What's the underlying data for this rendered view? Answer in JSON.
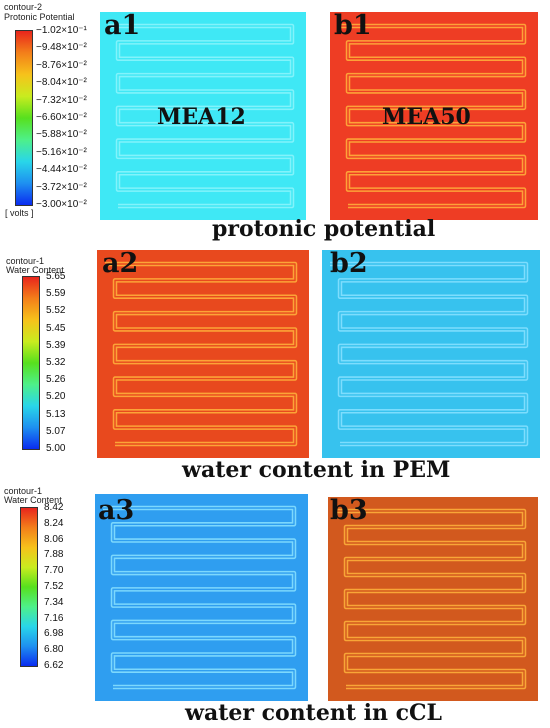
{
  "colors": {
    "a1": "#3fe8f5",
    "b1": "#ee3d24",
    "a2": "#e8491e",
    "b2": "#37c2ee",
    "a3": "#2f9ef0",
    "b3": "#d2591e",
    "stripe_light": "#ffb43c",
    "stripe_blue": "#8ae2ff",
    "stripe_cyan": "#8ef4fb",
    "colormap": [
      "#0a2cf0",
      "#1e90f0",
      "#29d6e9",
      "#4ef089",
      "#57e01e",
      "#c9ec1f",
      "#f6c21b",
      "#f37f1a",
      "#e8251c"
    ]
  },
  "legends": [
    {
      "id": "contour2",
      "title": "contour-2",
      "subtitle": "Protonic Potential",
      "unit": "[ volts ]",
      "ticks": [
        "−1.02×10⁻¹",
        "−9.48×10⁻²",
        "−8.76×10⁻²",
        "−8.04×10⁻²",
        "−7.32×10⁻²",
        "−6.60×10⁻²",
        "−5.88×10⁻²",
        "−5.16×10⁻²",
        "−4.44×10⁻²",
        "−3.72×10⁻²",
        "−3.00×10⁻²"
      ]
    },
    {
      "id": "contour1a",
      "title": "contour-1",
      "subtitle": "Water Content",
      "ticks": [
        "5.65",
        "5.59",
        "5.52",
        "5.45",
        "5.39",
        "5.32",
        "5.26",
        "5.20",
        "5.13",
        "5.07",
        "5.00"
      ]
    },
    {
      "id": "contour1b",
      "title": "contour-1",
      "subtitle": "Water Content",
      "ticks": [
        "8.42",
        "8.24",
        "8.06",
        "7.88",
        "7.70",
        "7.52",
        "7.34",
        "7.16",
        "6.98",
        "6.80",
        "6.62"
      ]
    }
  ],
  "panels": {
    "a1": {
      "label": "a1",
      "mea": "MEA12"
    },
    "b1": {
      "label": "b1",
      "mea": "MEA50"
    },
    "a2": {
      "label": "a2"
    },
    "b2": {
      "label": "b2"
    },
    "a3": {
      "label": "a3"
    },
    "b3": {
      "label": "b3"
    }
  },
  "captions": {
    "row1": "protonic potential",
    "row2": "water content in PEM",
    "row3": "water content in cCL"
  }
}
